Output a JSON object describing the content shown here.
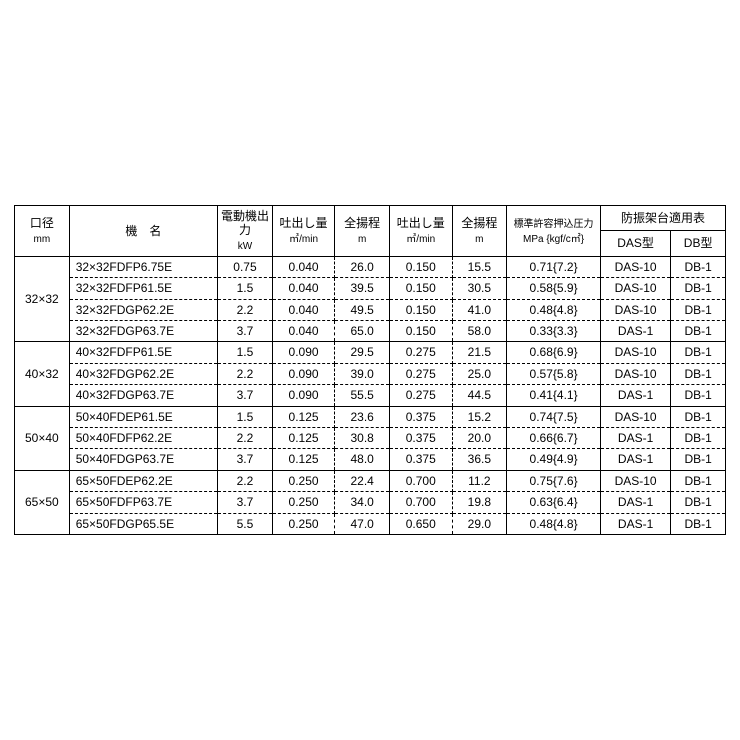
{
  "table": {
    "text_color": "#000000",
    "border_color": "#000000",
    "background_color": "#ffffff",
    "font_size": 12,
    "header": {
      "col_dia": "口径",
      "col_dia_unit": "mm",
      "col_model": "機　名",
      "col_motor": "電動機出力",
      "col_motor_unit": "kW",
      "col_disch1": "吐出し量",
      "col_disch1_unit": "㎥/min",
      "col_head1": "全揚程",
      "col_head1_unit": "m",
      "col_disch2": "吐出し量",
      "col_disch2_unit": "㎥/min",
      "col_head2": "全揚程",
      "col_head2_unit": "m",
      "col_press": "標準許容押込圧力",
      "col_press_unit": "MPa {kgf/c㎡}",
      "col_base": "防振架台適用表",
      "col_das": "DAS型",
      "col_db": "DB型"
    },
    "groups": [
      {
        "dia": "32×32",
        "rows": [
          {
            "model": "32×32FDFP6.75E",
            "kw": "0.75",
            "d1": "0.040",
            "h1": "26.0",
            "d2": "0.150",
            "h2": "15.5",
            "p": "0.71{7.2}",
            "das": "DAS-10",
            "db": "DB-1"
          },
          {
            "model": "32×32FDFP61.5E",
            "kw": "1.5",
            "d1": "0.040",
            "h1": "39.5",
            "d2": "0.150",
            "h2": "30.5",
            "p": "0.58{5.9}",
            "das": "DAS-10",
            "db": "DB-1"
          },
          {
            "model": "32×32FDGP62.2E",
            "kw": "2.2",
            "d1": "0.040",
            "h1": "49.5",
            "d2": "0.150",
            "h2": "41.0",
            "p": "0.48{4.8}",
            "das": "DAS-10",
            "db": "DB-1"
          },
          {
            "model": "32×32FDGP63.7E",
            "kw": "3.7",
            "d1": "0.040",
            "h1": "65.0",
            "d2": "0.150",
            "h2": "58.0",
            "p": "0.33{3.3}",
            "das": "DAS-1",
            "db": "DB-1"
          }
        ]
      },
      {
        "dia": "40×32",
        "rows": [
          {
            "model": "40×32FDFP61.5E",
            "kw": "1.5",
            "d1": "0.090",
            "h1": "29.5",
            "d2": "0.275",
            "h2": "21.5",
            "p": "0.68{6.9}",
            "das": "DAS-10",
            "db": "DB-1"
          },
          {
            "model": "40×32FDGP62.2E",
            "kw": "2.2",
            "d1": "0.090",
            "h1": "39.0",
            "d2": "0.275",
            "h2": "25.0",
            "p": "0.57{5.8}",
            "das": "DAS-10",
            "db": "DB-1"
          },
          {
            "model": "40×32FDGP63.7E",
            "kw": "3.7",
            "d1": "0.090",
            "h1": "55.5",
            "d2": "0.275",
            "h2": "44.5",
            "p": "0.41{4.1}",
            "das": "DAS-1",
            "db": "DB-1"
          }
        ]
      },
      {
        "dia": "50×40",
        "rows": [
          {
            "model": "50×40FDEP61.5E",
            "kw": "1.5",
            "d1": "0.125",
            "h1": "23.6",
            "d2": "0.375",
            "h2": "15.2",
            "p": "0.74{7.5}",
            "das": "DAS-10",
            "db": "DB-1"
          },
          {
            "model": "50×40FDFP62.2E",
            "kw": "2.2",
            "d1": "0.125",
            "h1": "30.8",
            "d2": "0.375",
            "h2": "20.0",
            "p": "0.66{6.7}",
            "das": "DAS-1",
            "db": "DB-1"
          },
          {
            "model": "50×40FDGP63.7E",
            "kw": "3.7",
            "d1": "0.125",
            "h1": "48.0",
            "d2": "0.375",
            "h2": "36.5",
            "p": "0.49{4.9}",
            "das": "DAS-1",
            "db": "DB-1"
          }
        ]
      },
      {
        "dia": "65×50",
        "rows": [
          {
            "model": "65×50FDEP62.2E",
            "kw": "2.2",
            "d1": "0.250",
            "h1": "22.4",
            "d2": "0.700",
            "h2": "11.2",
            "p": "0.75{7.6}",
            "das": "DAS-10",
            "db": "DB-1"
          },
          {
            "model": "65×50FDFP63.7E",
            "kw": "3.7",
            "d1": "0.250",
            "h1": "34.0",
            "d2": "0.700",
            "h2": "19.8",
            "p": "0.63{6.4}",
            "das": "DAS-1",
            "db": "DB-1"
          },
          {
            "model": "65×50FDGP65.5E",
            "kw": "5.5",
            "d1": "0.250",
            "h1": "47.0",
            "d2": "0.650",
            "h2": "29.0",
            "p": "0.48{4.8}",
            "das": "DAS-1",
            "db": "DB-1"
          }
        ]
      }
    ],
    "col_widths_pct": [
      7,
      19,
      7,
      8,
      7,
      8,
      7,
      12,
      9,
      7
    ]
  }
}
